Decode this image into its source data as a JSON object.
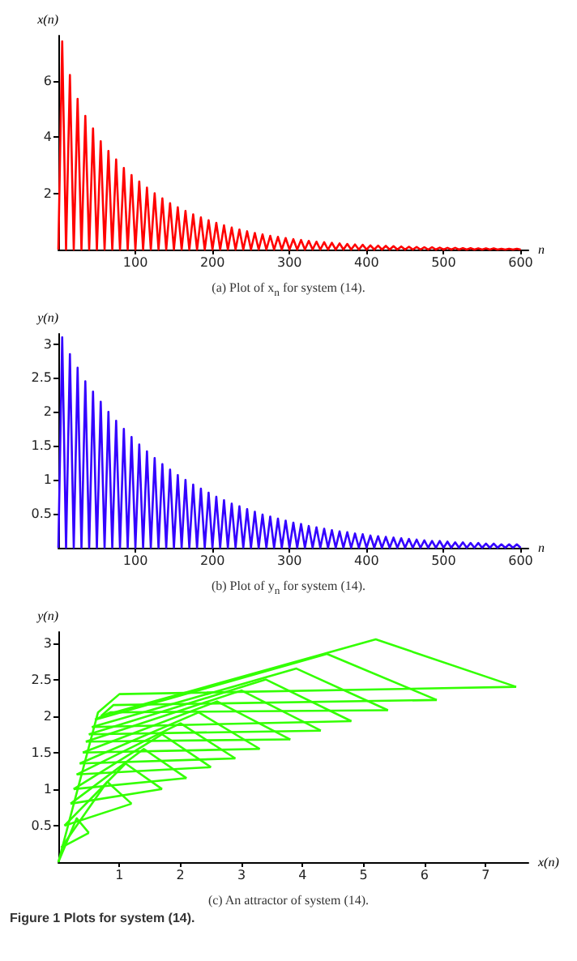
{
  "chart_data": [
    {
      "type": "line",
      "title": "(a) Plot of x$_{n}$ for system (14).",
      "xlabel": "n",
      "ylabel": "x(n)",
      "xlim": [
        0,
        610
      ],
      "xticks": [
        100,
        200,
        300,
        400,
        500,
        600
      ],
      "ylim": [
        0,
        7.6
      ],
      "yticks": [
        2,
        4,
        6
      ],
      "marker": "none",
      "grid": false,
      "x": [
        0,
        5,
        10,
        15,
        20,
        25,
        30,
        35,
        40,
        45,
        50,
        55,
        60,
        65,
        70,
        75,
        80,
        85,
        90,
        95,
        100,
        105,
        110,
        115,
        120,
        125,
        130,
        135,
        140,
        145,
        150,
        155,
        160,
        165,
        170,
        175,
        180,
        185,
        190,
        195,
        200,
        205,
        210,
        215,
        220,
        225,
        230,
        235,
        240,
        245,
        250,
        255,
        260,
        265,
        270,
        275,
        280,
        285,
        290,
        295,
        300,
        305,
        310,
        315,
        320,
        325,
        330,
        335,
        340,
        345,
        350,
        355,
        360,
        365,
        370,
        375,
        380,
        385,
        390,
        395,
        400,
        405,
        410,
        415,
        420,
        425,
        430,
        435,
        440,
        445,
        450,
        455,
        460,
        465,
        470,
        475,
        480,
        485,
        490,
        495,
        500,
        505,
        510,
        515,
        520,
        525,
        530,
        535,
        540,
        545,
        550,
        555,
        560,
        565,
        570,
        575,
        580,
        585,
        590,
        595,
        600
      ],
      "series": [
        {
          "color": "#ff0000",
          "values": [
            0,
            7.4,
            0,
            6.2,
            0,
            5.35,
            0,
            4.75,
            0,
            4.3,
            0,
            3.85,
            0,
            3.5,
            0,
            3.2,
            0,
            2.9,
            0,
            2.65,
            0,
            2.42,
            0,
            2.2,
            0,
            2.0,
            0,
            1.82,
            0,
            1.65,
            0,
            1.5,
            0,
            1.37,
            0,
            1.25,
            0,
            1.14,
            0,
            1.04,
            0,
            0.95,
            0,
            0.86,
            0,
            0.78,
            0,
            0.71,
            0,
            0.65,
            0,
            0.59,
            0,
            0.54,
            0,
            0.49,
            0,
            0.45,
            0,
            0.41,
            0,
            0.37,
            0,
            0.34,
            0,
            0.31,
            0,
            0.28,
            0,
            0.26,
            0,
            0.24,
            0,
            0.22,
            0,
            0.2,
            0,
            0.18,
            0,
            0.17,
            0,
            0.15,
            0,
            0.14,
            0,
            0.13,
            0,
            0.12,
            0,
            0.11,
            0,
            0.1,
            0,
            0.09,
            0,
            0.08,
            0,
            0.08,
            0,
            0.07,
            0,
            0.06,
            0,
            0.06,
            0,
            0.05,
            0,
            0.05,
            0,
            0.04,
            0,
            0.04,
            0,
            0.04,
            0,
            0.03,
            0,
            0.03,
            0,
            0.03,
            0
          ]
        }
      ]
    },
    {
      "type": "line",
      "title": "(b) Plot of y$_{n}$ for system (14).",
      "xlabel": "n",
      "ylabel": "y(n)",
      "xlim": [
        0,
        610
      ],
      "xticks": [
        100,
        200,
        300,
        400,
        500,
        600
      ],
      "ylim": [
        0,
        3.15
      ],
      "yticks": [
        0.5,
        1.0,
        1.5,
        2.0,
        2.5,
        3.0
      ],
      "marker": "none",
      "grid": false,
      "x": [
        0,
        5,
        10,
        15,
        20,
        25,
        30,
        35,
        40,
        45,
        50,
        55,
        60,
        65,
        70,
        75,
        80,
        85,
        90,
        95,
        100,
        105,
        110,
        115,
        120,
        125,
        130,
        135,
        140,
        145,
        150,
        155,
        160,
        165,
        170,
        175,
        180,
        185,
        190,
        195,
        200,
        205,
        210,
        215,
        220,
        225,
        230,
        235,
        240,
        245,
        250,
        255,
        260,
        265,
        270,
        275,
        280,
        285,
        290,
        295,
        300,
        305,
        310,
        315,
        320,
        325,
        330,
        335,
        340,
        345,
        350,
        355,
        360,
        365,
        370,
        375,
        380,
        385,
        390,
        395,
        400,
        405,
        410,
        415,
        420,
        425,
        430,
        435,
        440,
        445,
        450,
        455,
        460,
        465,
        470,
        475,
        480,
        485,
        490,
        495,
        500,
        505,
        510,
        515,
        520,
        525,
        530,
        535,
        540,
        545,
        550,
        555,
        560,
        565,
        570,
        575,
        580,
        585,
        590,
        595,
        600
      ],
      "series": [
        {
          "color": "#3300ff",
          "values": [
            0,
            3.1,
            0,
            2.85,
            0,
            2.65,
            0,
            2.45,
            0,
            2.3,
            0,
            2.15,
            0,
            2.0,
            0,
            1.87,
            0,
            1.75,
            0,
            1.63,
            0,
            1.52,
            0,
            1.42,
            0,
            1.32,
            0,
            1.23,
            0,
            1.15,
            0,
            1.07,
            0,
            1.0,
            0,
            0.93,
            0,
            0.87,
            0,
            0.81,
            0,
            0.75,
            0,
            0.7,
            0,
            0.65,
            0,
            0.61,
            0,
            0.57,
            0,
            0.53,
            0,
            0.49,
            0,
            0.46,
            0,
            0.43,
            0,
            0.4,
            0,
            0.37,
            0,
            0.35,
            0,
            0.32,
            0,
            0.3,
            0,
            0.28,
            0,
            0.26,
            0,
            0.24,
            0,
            0.23,
            0,
            0.21,
            0,
            0.2,
            0,
            0.18,
            0,
            0.17,
            0,
            0.16,
            0,
            0.15,
            0,
            0.14,
            0,
            0.13,
            0,
            0.12,
            0,
            0.11,
            0,
            0.1,
            0,
            0.1,
            0,
            0.09,
            0,
            0.08,
            0,
            0.08,
            0,
            0.07,
            0,
            0.07,
            0,
            0.06,
            0,
            0.06,
            0,
            0.05,
            0,
            0.05,
            0,
            0.05,
            0
          ]
        }
      ]
    },
    {
      "type": "line",
      "title": "(c) An attractor of system (14).",
      "xlabel": "x(n)",
      "ylabel": "y(n)",
      "xlim": [
        0,
        7.7
      ],
      "xticks": [
        1,
        2,
        3,
        4,
        5,
        6,
        7
      ],
      "ylim": [
        0,
        3.15
      ],
      "yticks": [
        0.5,
        1.0,
        1.5,
        2.0,
        2.5,
        3.0
      ],
      "marker": "none",
      "grid": false,
      "annotations": [
        "Figure 1  Plots for system (14)."
      ],
      "series": [
        {
          "color": "#33ff00",
          "x": [
            0,
            0.65,
            1.0,
            7.5,
            5.2,
            0.7,
            0.9,
            6.2,
            4.4,
            0.6,
            0.85,
            5.4,
            3.9,
            0.55,
            4.8,
            3.4,
            0.5,
            4.3,
            3.0,
            0.45,
            3.8,
            2.6,
            0.4,
            3.3,
            2.3,
            0.35,
            2.9,
            2.0,
            0.3,
            2.5,
            1.7,
            0.25,
            2.1,
            1.4,
            0.2,
            1.7,
            1.1,
            0.1,
            1.2,
            0.8,
            0.05,
            0.5,
            0.3,
            0
          ],
          "values": [
            0,
            2.05,
            2.3,
            2.4,
            3.05,
            2.0,
            2.15,
            2.22,
            2.85,
            1.95,
            2.05,
            2.08,
            2.65,
            1.85,
            1.93,
            2.5,
            1.75,
            1.8,
            2.35,
            1.65,
            1.68,
            2.2,
            1.5,
            1.55,
            2.05,
            1.35,
            1.42,
            1.9,
            1.2,
            1.3,
            1.75,
            1.0,
            1.15,
            1.55,
            0.8,
            1.0,
            1.35,
            0.5,
            0.8,
            1.1,
            0.2,
            0.4,
            0.6,
            0
          ]
        }
      ]
    }
  ]
}
